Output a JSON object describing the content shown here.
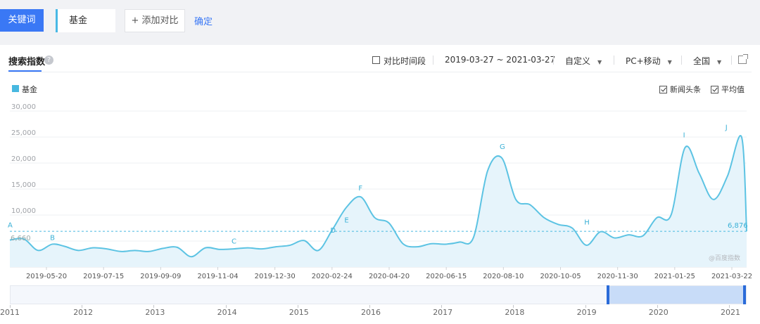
{
  "toolbar": {
    "keyword_tab": "关键词",
    "keyword_value": "基金",
    "add_compare": "+ 添加对比",
    "confirm": "确定"
  },
  "panel": {
    "tab": "搜索指数",
    "help_icon": "?",
    "compare_period": "对比时间段",
    "date_range": "2019-03-27 ~ 2021-03-27",
    "custom": "自定义",
    "device": "PC+移动",
    "region": "全国",
    "news_headlines": "新闻头条",
    "average": "平均值",
    "watermark": "@百度指数",
    "icons": {
      "help": "question-icon",
      "export": "external-link-icon",
      "dropdown": "caret-down-icon"
    }
  },
  "colors": {
    "accent": "#3a78f5",
    "series": "#47b8e0"
  },
  "chart_data": {
    "type": "area",
    "title": "",
    "series": [
      {
        "name": "基金",
        "x": [
          "2019-03-27",
          "2019-04-10",
          "2019-04-24",
          "2019-05-08",
          "2019-05-20",
          "2019-06-03",
          "2019-06-17",
          "2019-07-01",
          "2019-07-15",
          "2019-07-29",
          "2019-08-12",
          "2019-08-26",
          "2019-09-09",
          "2019-09-23",
          "2019-10-07",
          "2019-10-21",
          "2019-11-04",
          "2019-11-18",
          "2019-12-02",
          "2019-12-16",
          "2019-12-30",
          "2020-01-13",
          "2020-01-27",
          "2020-02-10",
          "2020-02-24",
          "2020-03-09",
          "2020-03-23",
          "2020-04-06",
          "2020-04-20",
          "2020-05-04",
          "2020-05-18",
          "2020-06-01",
          "2020-06-15",
          "2020-06-29",
          "2020-07-13",
          "2020-07-27",
          "2020-08-10",
          "2020-08-24",
          "2020-09-07",
          "2020-09-21",
          "2020-10-05",
          "2020-10-19",
          "2020-11-02",
          "2020-11-16",
          "2020-11-30",
          "2020-12-14",
          "2020-12-28",
          "2021-01-11",
          "2021-01-25",
          "2021-02-08",
          "2021-02-22",
          "2021-03-08",
          "2021-03-22",
          "2021-03-27"
        ],
        "values": [
          5200,
          5400,
          3200,
          4400,
          4000,
          3200,
          3700,
          3500,
          3000,
          3200,
          3000,
          3600,
          3800,
          2000,
          3700,
          3400,
          3500,
          3700,
          3500,
          3900,
          4200,
          5100,
          3200,
          7200,
          11500,
          13500,
          9500,
          8500,
          4500,
          3900,
          4500,
          4400,
          4800,
          5700,
          18500,
          21000,
          13000,
          12000,
          9500,
          8200,
          7500,
          4200,
          6800,
          5600,
          6200,
          6000,
          9500,
          10000,
          23000,
          18000,
          13000,
          17500,
          25000,
          6876
        ]
      }
    ],
    "average": 6876,
    "ylim": [
      0,
      30000
    ],
    "yticks": [
      "30,000",
      "25,000",
      "20,000",
      "15,000",
      "10,000",
      ""
    ],
    "xtick_labels": [
      "2019-05-20",
      "2019-07-15",
      "2019-09-09",
      "2019-11-04",
      "2019-12-30",
      "2020-02-24",
      "2020-04-20",
      "2020-06-15",
      "2020-08-10",
      "2020-10-05",
      "2020-11-30",
      "2021-01-25",
      "2021-03-22"
    ],
    "annotations": [
      {
        "label": "A",
        "x": "2019-03-27",
        "y": 7200
      },
      {
        "label": "B",
        "x": "2019-05-08",
        "y": 4800
      },
      {
        "label": "C",
        "x": "2019-11-04",
        "y": 4100
      },
      {
        "label": "D",
        "x": "2020-02-10",
        "y": 6200
      },
      {
        "label": "E",
        "x": "2020-02-24",
        "y": 8200
      },
      {
        "label": "F",
        "x": "2020-03-09",
        "y": 14300
      },
      {
        "label": "G",
        "x": "2020-07-27",
        "y": 22300
      },
      {
        "label": "H",
        "x": "2020-10-19",
        "y": 7800
      },
      {
        "label": "I",
        "x": "2021-01-25",
        "y": 24500
      },
      {
        "label": "J",
        "x": "2021-03-08",
        "y": 26000
      }
    ],
    "value_labels": [
      "6,876",
      "6,660"
    ],
    "legend": "top-left",
    "grid": true
  },
  "navigator": {
    "years": [
      "2011",
      "2012",
      "2013",
      "2014",
      "2015",
      "2016",
      "2017",
      "2018",
      "2019",
      "2020",
      "2021"
    ],
    "selection": [
      0.8125,
      1.0
    ]
  }
}
